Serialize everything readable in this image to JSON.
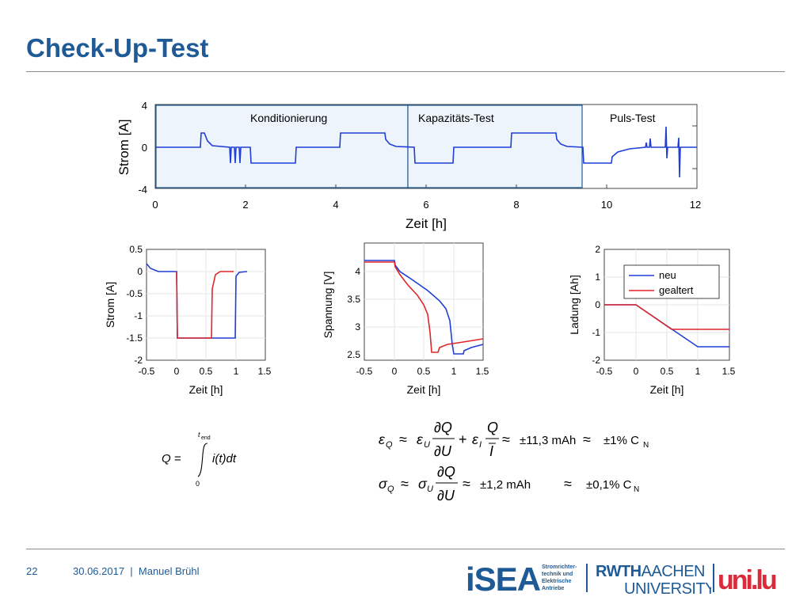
{
  "title": "Check-Up-Test",
  "top_chart": {
    "ylabel": "Strom [A]",
    "xlabel": "Zeit [h]",
    "yticks": [
      "4",
      "0",
      "-4"
    ],
    "xticks": [
      "0",
      "2",
      "4",
      "6",
      "8",
      "10",
      "12"
    ],
    "sections": [
      "Konditionierung",
      "Kapazitäts-Test",
      "Puls-Test"
    ]
  },
  "chart_strom": {
    "ylabel": "Strom [A]",
    "xlabel": "Zeit [h]",
    "yticks": [
      "0.5",
      "0",
      "-0.5",
      "-1",
      "-1.5",
      "-2"
    ],
    "xticks": [
      "-0.5",
      "0",
      "0.5",
      "1",
      "1.5"
    ]
  },
  "chart_spannung": {
    "ylabel": "Spannung [V]",
    "xlabel": "Zeit [h]",
    "yticks": [
      "4",
      "3.5",
      "3",
      "2.5"
    ],
    "xticks": [
      "-0.5",
      "0",
      "0.5",
      "1",
      "1.5"
    ]
  },
  "chart_ladung": {
    "ylabel": "Ladung [Ah]",
    "xlabel": "Zeit [h]",
    "yticks": [
      "2",
      "1",
      "0",
      "-1",
      "-2"
    ],
    "xticks": [
      "-0.5",
      "0",
      "0.5",
      "1",
      "1.5"
    ],
    "legend": [
      "neu",
      "gealtert"
    ]
  },
  "colors": {
    "neu": "#1f3fd6",
    "gealtert": "#e0262b",
    "title": "#1e5a96"
  },
  "formulas": {
    "q_integral": "Q = ∫₀^t_end i(t) dt",
    "eps_value": "±11,3 mAh",
    "eps_rel": "±1% C",
    "sigma_value": "±1,2 mAh",
    "sigma_rel": "±0,1% C",
    "sub_n": "N"
  },
  "footer": {
    "page": "22",
    "date_author": "30.06.2017  |  Manuel Brühl",
    "isea": "iSEA",
    "isea_sub": [
      "Stromrichter-",
      "technik und",
      "Elektrische",
      "Antriebe"
    ],
    "rwth1": "RWTH",
    "rwth2": "AACHEN",
    "rwth3": "UNIVERSITY",
    "unilu": "uni.lu"
  }
}
